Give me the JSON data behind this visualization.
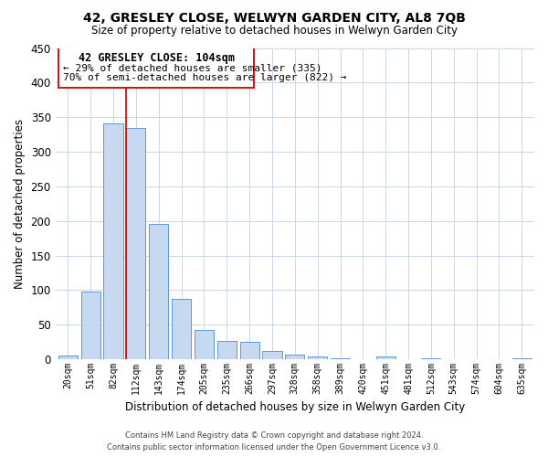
{
  "title": "42, GRESLEY CLOSE, WELWYN GARDEN CITY, AL8 7QB",
  "subtitle": "Size of property relative to detached houses in Welwyn Garden City",
  "xlabel": "Distribution of detached houses by size in Welwyn Garden City",
  "ylabel": "Number of detached properties",
  "bar_labels": [
    "20sqm",
    "51sqm",
    "82sqm",
    "112sqm",
    "143sqm",
    "174sqm",
    "205sqm",
    "235sqm",
    "266sqm",
    "297sqm",
    "328sqm",
    "358sqm",
    "389sqm",
    "420sqm",
    "451sqm",
    "481sqm",
    "512sqm",
    "543sqm",
    "574sqm",
    "604sqm",
    "635sqm"
  ],
  "bar_values": [
    5,
    98,
    341,
    335,
    196,
    87,
    43,
    26,
    25,
    12,
    7,
    4,
    1,
    0,
    4,
    0,
    1,
    0,
    0,
    0,
    2
  ],
  "bar_color": "#c6d9f0",
  "bar_edge_color": "#5b9bd5",
  "highlight_line_color": "#cc0000",
  "highlight_line_bar_index": 3,
  "ylim": [
    0,
    450
  ],
  "yticks": [
    0,
    50,
    100,
    150,
    200,
    250,
    300,
    350,
    400,
    450
  ],
  "annotation_title": "42 GRESLEY CLOSE: 104sqm",
  "annotation_line1": "← 29% of detached houses are smaller (335)",
  "annotation_line2": "70% of semi-detached houses are larger (822) →",
  "footer_line1": "Contains HM Land Registry data © Crown copyright and database right 2024.",
  "footer_line2": "Contains public sector information licensed under the Open Government Licence v3.0.",
  "background_color": "#ffffff",
  "grid_color": "#c8d8e8"
}
